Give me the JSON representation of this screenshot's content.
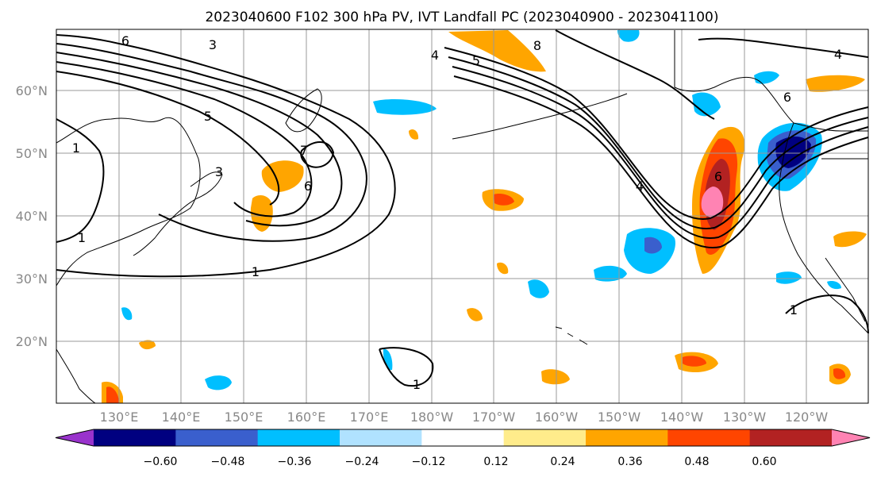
{
  "title": "2023040600 F102 300 hPa PV, IVT Landfall PC (2023040900 - 2023041100)",
  "map": {
    "lat_labels": [
      "60°N",
      "50°N",
      "40°N",
      "30°N",
      "20°N"
    ],
    "lon_labels": [
      "130°E",
      "140°E",
      "150°E",
      "160°E",
      "170°E",
      "180°W",
      "170°W",
      "160°W",
      "150°W",
      "140°W",
      "130°W",
      "120°W"
    ],
    "contour_labels": [
      "6",
      "3",
      "5",
      "3",
      "1",
      "1",
      "7",
      "6",
      "1",
      "4",
      "5",
      "8",
      "4",
      "6",
      "6",
      "4",
      "1",
      "1"
    ]
  },
  "colorbar": {
    "tick_labels": [
      "−0.60",
      "−0.48",
      "−0.36",
      "−0.24",
      "−0.12",
      "0.12",
      "0.24",
      "0.36",
      "0.48",
      "0.60"
    ],
    "colors": [
      "#9933cc",
      "#000080",
      "#3a5fcd",
      "#00bfff",
      "#b0e2ff",
      "#ffffff",
      "#ffec8b",
      "#ffa500",
      "#ff4500",
      "#b22222",
      "#ff83b3"
    ]
  }
}
